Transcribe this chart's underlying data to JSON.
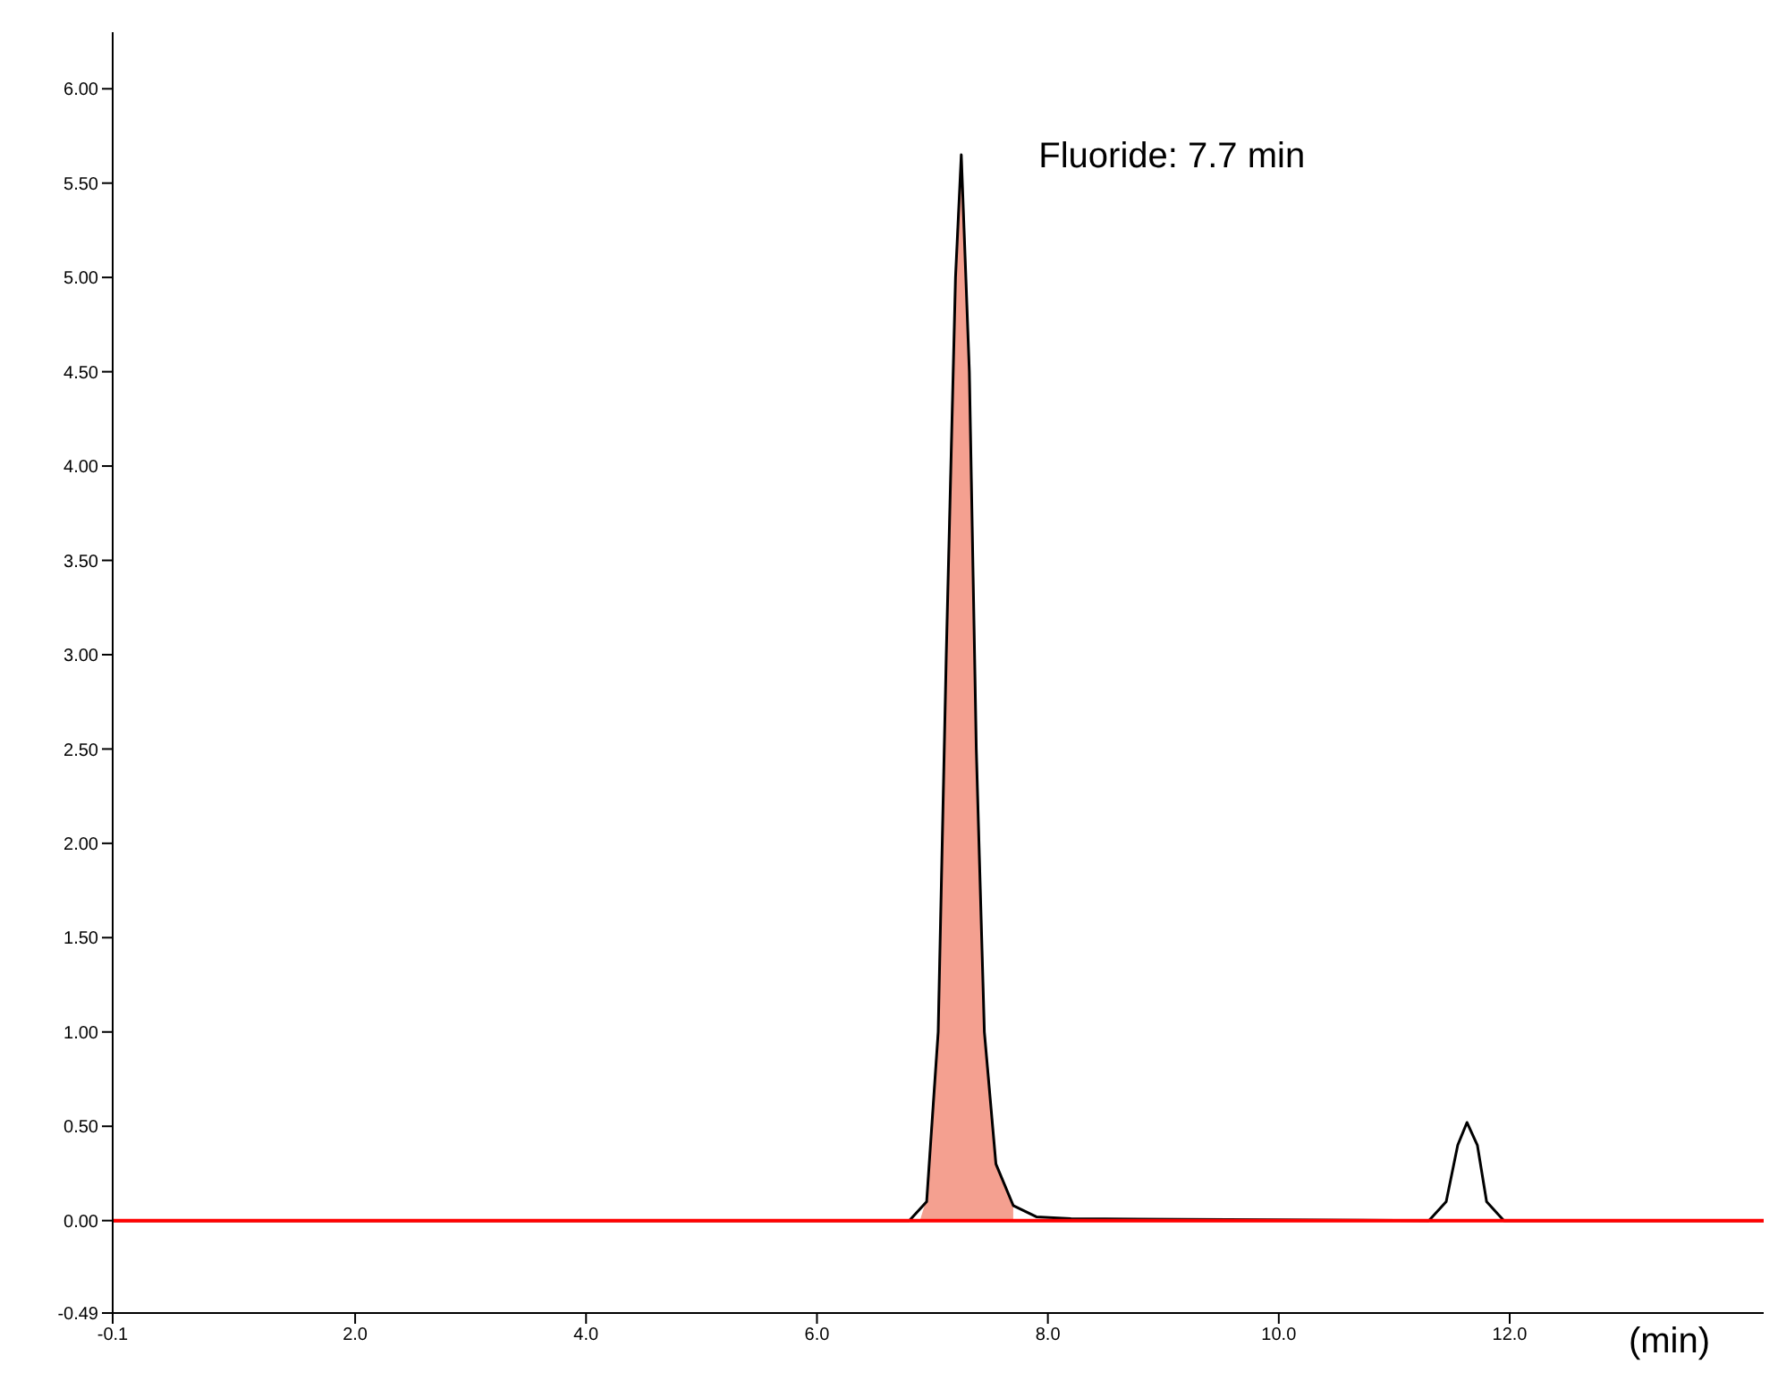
{
  "chart_data": {
    "type": "line",
    "xlabel": "(min)",
    "annotations": [
      {
        "text": "Fluoride: 7.7 min",
        "x": 7.3,
        "y": 5.65
      }
    ],
    "xlim": [
      -0.1,
      14.2
    ],
    "xticks": [
      -0.1,
      {
        "value": 2,
        "label": "2.0"
      },
      {
        "value": 4,
        "label": "4.0"
      },
      {
        "value": 6,
        "label": "6.0"
      },
      {
        "value": 8,
        "label": "8.0"
      },
      {
        "value": 10,
        "label": "10.0"
      },
      {
        "value": 12,
        "label": "12.0"
      }
    ],
    "ylim": [
      -0.49,
      6.3
    ],
    "yticks": [
      -0.49,
      {
        "value": 0,
        "label": "0.00"
      },
      {
        "value": 0.5,
        "label": "0.50"
      },
      {
        "value": 1,
        "label": "1.00"
      },
      {
        "value": 1.5,
        "label": "1.50"
      },
      {
        "value": 2,
        "label": "2.00"
      },
      {
        "value": 2.5,
        "label": "2.50"
      },
      {
        "value": 3,
        "label": "3.00"
      },
      {
        "value": 3.5,
        "label": "3.50"
      },
      {
        "value": 4,
        "label": "4.00"
      },
      {
        "value": 4.5,
        "label": "4.50"
      },
      {
        "value": 5,
        "label": "5.00"
      },
      {
        "value": 5.5,
        "label": "5.50"
      },
      {
        "value": 6,
        "label": "6.00"
      }
    ],
    "grid": false,
    "legend": false,
    "marker": "none",
    "series": [
      {
        "type": "area",
        "color": "#f4a090",
        "x": [
          6.9,
          6.95,
          7.05,
          7.12,
          7.2,
          7.25,
          7.32,
          7.38,
          7.45,
          7.55,
          7.7
        ],
        "values": [
          0,
          0.1,
          1.0,
          3.0,
          5.0,
          5.65,
          4.5,
          2.5,
          1.0,
          0.3,
          0.08
        ]
      },
      {
        "color": "#000000",
        "x": [
          -0.1,
          6.8,
          6.95,
          7.05,
          7.12,
          7.2,
          7.25,
          7.32,
          7.38,
          7.45,
          7.55,
          7.7,
          7.9,
          8.2,
          11.3,
          11.45,
          11.55,
          11.63,
          11.72,
          11.8,
          11.95,
          14.2
        ],
        "values": [
          0,
          0,
          0.1,
          1.0,
          3.0,
          5.0,
          5.65,
          4.5,
          2.5,
          1.0,
          0.3,
          0.08,
          0.02,
          0.01,
          0,
          0.1,
          0.4,
          0.52,
          0.4,
          0.1,
          0,
          0
        ]
      },
      {
        "type": "line",
        "color": "#ff0000",
        "x": [
          -0.1,
          14.2
        ],
        "values": [
          0,
          0
        ]
      }
    ]
  }
}
